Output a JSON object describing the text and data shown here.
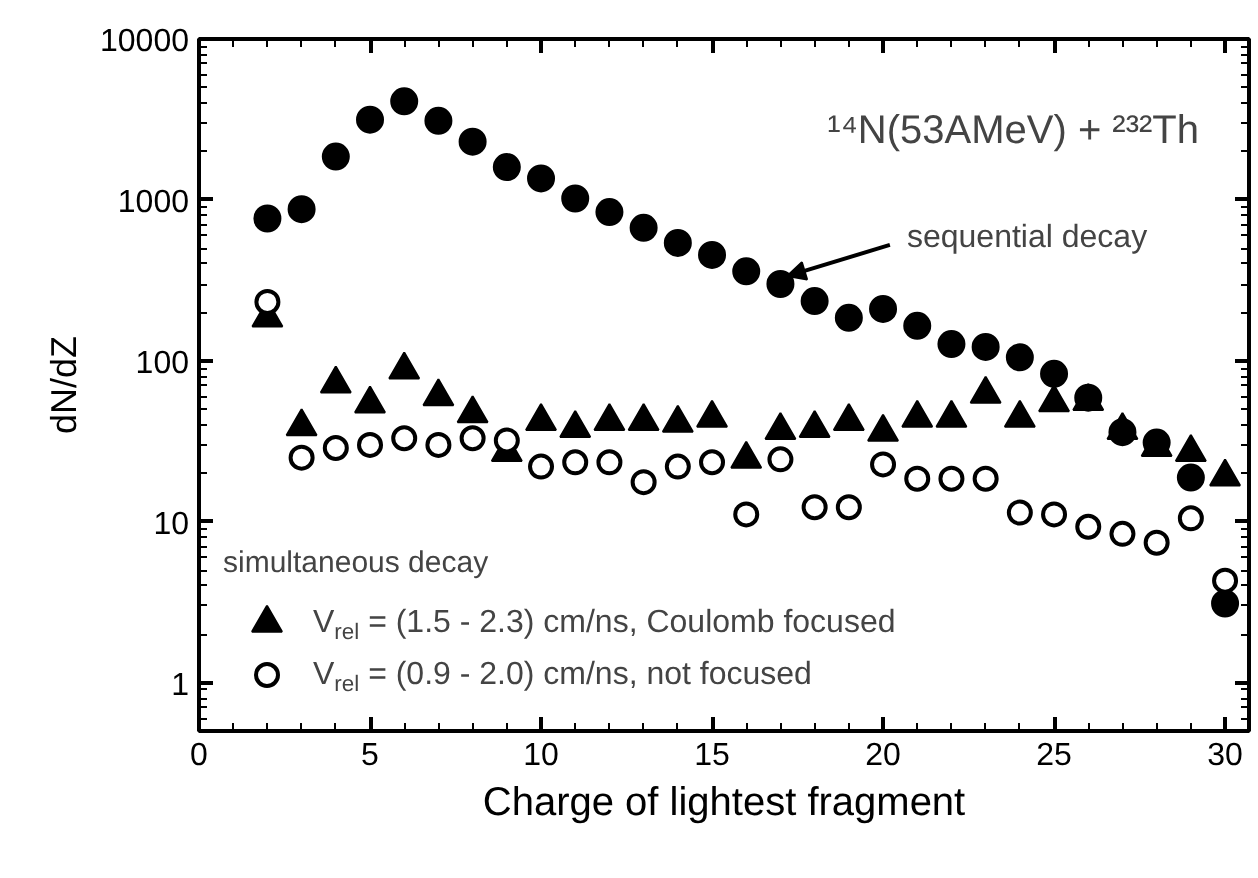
{
  "chart_data": {
    "type": "scatter",
    "title": "¹⁴N(53AMeV) + ²³²Th",
    "xlabel": "Charge of lightest fragment",
    "ylabel": "dN/dZ",
    "legend_title": "simultaneous decay",
    "legend": "bottom left",
    "log": "y",
    "grid": false,
    "xlim": [
      0,
      30.7
    ],
    "xticks": [
      0,
      5,
      10,
      15,
      20,
      25,
      30
    ],
    "ylim": [
      0.5,
      10000
    ],
    "yticks": [
      1,
      10,
      100,
      1000,
      10000
    ],
    "x": [
      2,
      3,
      4,
      5,
      6,
      7,
      8,
      9,
      10,
      11,
      12,
      13,
      14,
      15,
      16,
      17,
      18,
      19,
      20,
      21,
      22,
      23,
      24,
      25,
      26,
      27,
      28,
      29,
      30
    ],
    "series": [
      {
        "color": "#000000",
        "marker": "circle",
        "values": [
          766,
          875,
          1860,
          3150,
          4100,
          3100,
          2300,
          1600,
          1360,
          1020,
          840,
          670,
          540,
          455,
          360,
          300,
          235,
          185,
          210,
          165,
          127,
          122,
          105,
          83,
          59,
          36,
          31,
          18.8,
          3.1
        ]
      },
      {
        "name": "V$_{rel}$ = (1.5 - 2.3) cm/ns, Coulomb focused",
        "color": "#000000",
        "marker": "triangle",
        "values": [
          185,
          39,
          72,
          54,
          88,
          60,
          47,
          27,
          42,
          38,
          42,
          42,
          41,
          44,
          24.5,
          37,
          38,
          42,
          36,
          44,
          44,
          62,
          44,
          55,
          56,
          37,
          29,
          27,
          19
        ]
      },
      {
        "name": "V$_{rel}$ = (0.9 - 2.0) cm/ns, not focused",
        "color": "#000000",
        "marker": "open_circle",
        "values": [
          232,
          25,
          28.7,
          30,
          33,
          30,
          33,
          32,
          22,
          23.4,
          23.4,
          17.6,
          22,
          23.4,
          11.1,
          24.4,
          12.3,
          12.3,
          22.7,
          18.5,
          18.5,
          18.5,
          11.4,
          11.1,
          9.3,
          8.4,
          7.4,
          10.5,
          4.3
        ]
      }
    ],
    "annotations": [
      {
        "text": "sequential decay",
        "x": 17,
        "y": 300
      }
    ]
  }
}
